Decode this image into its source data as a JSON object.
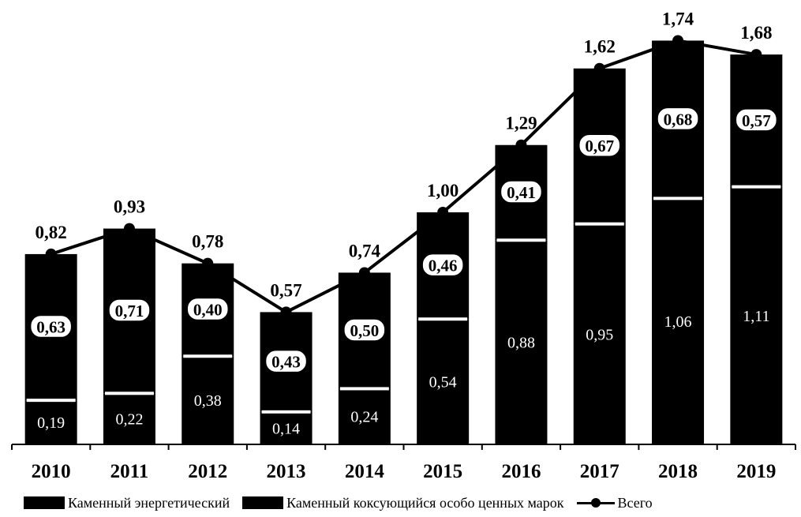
{
  "chart_data": {
    "type": "bar",
    "stacked": true,
    "categories": [
      "2010",
      "2011",
      "2012",
      "2013",
      "2014",
      "2015",
      "2016",
      "2017",
      "2018",
      "2019"
    ],
    "series": [
      {
        "name": "Каменный энергетический",
        "type": "bar",
        "values": [
          0.19,
          0.22,
          0.38,
          0.14,
          0.24,
          0.54,
          0.88,
          0.95,
          1.06,
          1.11
        ],
        "labels": [
          "0,19",
          "0,22",
          "0,38",
          "0,14",
          "0,24",
          "0,54",
          "0,88",
          "0,95",
          "1,06",
          "1,11"
        ],
        "color": "#000000"
      },
      {
        "name": "Каменный коксующийся особо ценных марок",
        "type": "bar",
        "values": [
          0.63,
          0.71,
          0.4,
          0.43,
          0.5,
          0.46,
          0.41,
          0.67,
          0.68,
          0.57
        ],
        "labels": [
          "0,63",
          "0,71",
          "0,40",
          "0,43",
          "0,50",
          "0,46",
          "0,41",
          "0,67",
          "0,68",
          "0,57"
        ],
        "color": "#000000"
      },
      {
        "name": "Всего",
        "type": "line",
        "values": [
          0.82,
          0.93,
          0.78,
          0.57,
          0.74,
          1.0,
          1.29,
          1.62,
          1.74,
          1.68
        ],
        "labels": [
          "0,82",
          "0,93",
          "0,78",
          "0,57",
          "0,74",
          "1,00",
          "1,29",
          "1,62",
          "1,74",
          "1,68"
        ],
        "color": "#000000"
      }
    ],
    "title": "",
    "xlabel": "",
    "ylabel": "",
    "ylim": [
      0,
      1.8
    ],
    "grid": false,
    "legend_position": "bottom"
  }
}
